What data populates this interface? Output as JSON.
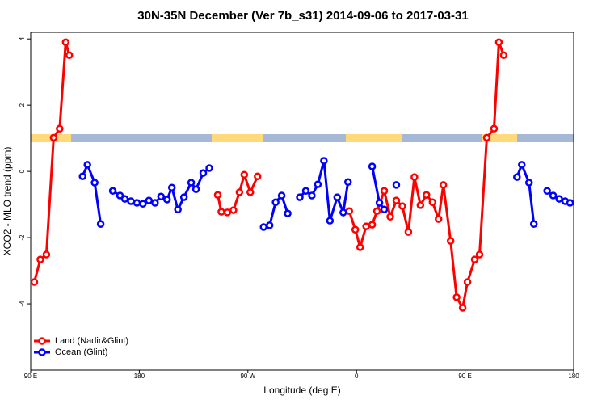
{
  "chart_data": {
    "type": "line",
    "title": "30N-35N December (Ver 7b_s31)   2014-09-06 to 2017-03-31",
    "xlabel": "Longitude (deg E)",
    "ylabel": "XCO2 - MLO trend (ppm)",
    "xlim": [
      90,
      540
    ],
    "ylim": [
      -6,
      4.2
    ],
    "xticks": [
      {
        "value": 90,
        "label": "90 E"
      },
      {
        "value": 180,
        "label": "180"
      },
      {
        "value": 270,
        "label": "90 W"
      },
      {
        "value": 360,
        "label": "0"
      },
      {
        "value": 450,
        "label": "90 E"
      },
      {
        "value": 540,
        "label": "180"
      }
    ],
    "yticks": [
      4,
      2,
      0,
      -2,
      -4
    ],
    "legend": "bottom-left",
    "series": [
      {
        "name": "Land (Nadir&Glint)",
        "color": "#ff0000",
        "x": [
          93,
          98,
          103,
          109,
          114,
          119,
          122,
          null,
          245,
          248,
          253,
          258,
          263,
          267,
          272,
          278,
          null,
          354,
          359,
          363,
          368,
          373,
          377,
          383,
          388,
          393,
          398,
          403,
          408,
          413,
          418,
          423,
          428,
          432,
          438,
          443,
          448,
          452,
          458,
          462,
          468,
          474,
          478,
          482
        ],
        "values": [
          -3.34,
          -2.66,
          -2.51,
          1.02,
          1.29,
          3.9,
          3.51,
          null,
          -0.71,
          -1.22,
          -1.24,
          -1.17,
          -0.63,
          -0.1,
          -0.63,
          -0.15,
          null,
          -1.2,
          -1.76,
          -2.29,
          -1.66,
          -1.61,
          -1.2,
          -0.59,
          -1.37,
          -0.88,
          -1.05,
          -1.83,
          -0.17,
          -1.02,
          -0.71,
          -0.93,
          -1.44,
          -0.41,
          -2.1,
          -3.8,
          -4.12,
          -3.34,
          -2.66,
          -2.51,
          1.02,
          1.29,
          3.9,
          3.51
        ]
      },
      {
        "name": "Ocean (Glint)",
        "color": "#0000ff",
        "x": [
          133,
          137,
          143,
          148,
          null,
          158,
          164,
          168,
          173,
          178,
          183,
          188,
          193,
          198,
          203,
          207,
          212,
          217,
          223,
          227,
          233,
          238,
          null,
          283,
          288,
          293,
          298,
          303,
          null,
          313,
          318,
          323,
          328,
          333,
          338,
          344,
          349,
          353,
          null,
          373,
          379,
          383,
          null,
          393,
          null,
          493,
          497,
          503,
          507,
          null,
          518,
          523,
          528,
          533,
          537
        ],
        "values": [
          -0.15,
          0.2,
          -0.34,
          -1.59,
          null,
          -0.59,
          -0.73,
          -0.83,
          -0.9,
          -0.95,
          -0.98,
          -0.88,
          -0.95,
          -0.76,
          -0.85,
          -0.49,
          -1.15,
          -0.78,
          -0.34,
          -0.54,
          -0.05,
          0.1,
          null,
          -1.68,
          -1.63,
          -0.93,
          -0.73,
          -1.27,
          null,
          -0.78,
          -0.59,
          -0.73,
          -0.39,
          0.32,
          -1.49,
          -0.78,
          -1.24,
          -0.32,
          null,
          0.15,
          -0.95,
          -1.15,
          null,
          -0.41,
          null,
          -0.17,
          0.2,
          -0.34,
          -1.59,
          null,
          -0.59,
          -0.73,
          -0.83,
          -0.9,
          -0.95
        ]
      }
    ]
  }
}
